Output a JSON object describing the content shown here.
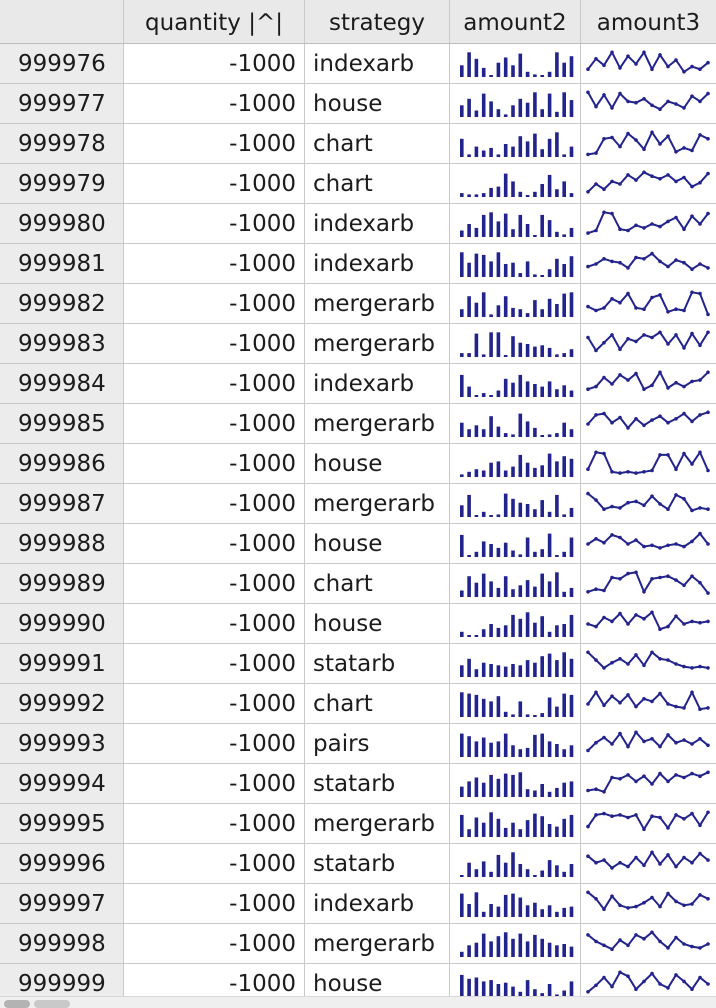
{
  "colors": {
    "spark": "#23238c",
    "header_bg": "#e9e9e9",
    "index_bg": "#ececec",
    "gridline": "#c9c9c9"
  },
  "columns": {
    "index": "",
    "quantity": "quantity |^|",
    "strategy": "strategy",
    "amount2": "amount2",
    "amount3": "amount3"
  },
  "rows": [
    {
      "id": "999976",
      "quantity": "-1000",
      "strategy": "indexarb",
      "a2": [
        0.45,
        0.95,
        0.7,
        0.35,
        0,
        0.55,
        0.75,
        0.45,
        0.9,
        0.2,
        0.1,
        0,
        0.2,
        0.95,
        0.55,
        0.8
      ],
      "a3": [
        0.3,
        0.7,
        0.45,
        0.95,
        0.35,
        0.8,
        0.5,
        0.95,
        0.3,
        0.85,
        0.4,
        0.65,
        0.2,
        0.4,
        0.3,
        0.55
      ]
    },
    {
      "id": "999977",
      "quantity": "-1000",
      "strategy": "house",
      "a2": [
        0.45,
        0.7,
        0.25,
        0.9,
        0.6,
        0.3,
        0.1,
        0.45,
        0.7,
        0.55,
        0.95,
        0.3,
        0.9,
        0.2,
        0.95,
        0.65
      ],
      "a3": [
        0.95,
        0.4,
        0.85,
        0.35,
        0.9,
        0.6,
        0.55,
        0.7,
        0.45,
        0.3,
        0.6,
        0.5,
        0.35,
        0.8,
        0.6,
        0.9
      ]
    },
    {
      "id": "999978",
      "quantity": "-1000",
      "strategy": "chart",
      "a2": [
        0.7,
        0.1,
        0.4,
        0.25,
        0.35,
        0.1,
        0.5,
        0.4,
        0.8,
        0.6,
        0.9,
        0.3,
        0.7,
        0.95,
        0.1,
        0.4
      ],
      "a3": [
        0.1,
        0.15,
        0.7,
        0.75,
        0.4,
        0.9,
        0.65,
        0.3,
        0.95,
        0.5,
        0.8,
        0.2,
        0.35,
        0.25,
        0.85,
        0.7
      ]
    },
    {
      "id": "999979",
      "quantity": "-1000",
      "strategy": "chart",
      "a2": [
        0.15,
        0.1,
        0.1,
        0.15,
        0.35,
        0.4,
        0.9,
        0.6,
        0.2,
        0,
        0.2,
        0.5,
        0.85,
        0.3,
        0.6,
        0.15
      ],
      "a3": [
        0.2,
        0.5,
        0.3,
        0.6,
        0.5,
        0.85,
        0.65,
        0.95,
        0.8,
        0.7,
        0.85,
        0.6,
        0.75,
        0.4,
        0.55,
        0.9
      ]
    },
    {
      "id": "999980",
      "quantity": "-1000",
      "strategy": "indexarb",
      "a2": [
        0.25,
        0.5,
        0.35,
        0.85,
        0.95,
        0.6,
        0.9,
        0.3,
        0.85,
        0.5,
        0,
        0.85,
        0.65,
        0.2,
        0.1,
        0.35
      ],
      "a3": [
        0.15,
        0.25,
        0.95,
        0.9,
        0.3,
        0.25,
        0.45,
        0.35,
        0.5,
        0.4,
        0.6,
        0.75,
        0.3,
        0.8,
        0.5,
        0.9
      ]
    },
    {
      "id": "999981",
      "quantity": "-1000",
      "strategy": "indexarb",
      "a2": [
        0.95,
        0.55,
        0.9,
        0.85,
        0.6,
        0.95,
        0.5,
        0.55,
        0.15,
        0.6,
        0.1,
        0,
        0.3,
        0.7,
        0.5,
        0.8
      ],
      "a3": [
        0.4,
        0.5,
        0.7,
        0.6,
        0.55,
        0.35,
        0.75,
        0.7,
        0.9,
        0.6,
        0.4,
        0.65,
        0.55,
        0.3,
        0.5,
        0.35
      ]
    },
    {
      "id": "999982",
      "quantity": "-1000",
      "strategy": "mergerarb",
      "a2": [
        0.3,
        0.8,
        0.55,
        0.95,
        0.1,
        0.45,
        0.8,
        0.35,
        0.3,
        0.15,
        0.65,
        0.3,
        0.7,
        0.5,
        0.9,
        0.95
      ],
      "a3": [
        0.4,
        0.25,
        0.35,
        0.7,
        0.55,
        0.9,
        0.35,
        0.3,
        0.75,
        0.85,
        0.2,
        0.3,
        0.25,
        0.95,
        0.9,
        0.1
      ]
    },
    {
      "id": "999983",
      "quantity": "-1000",
      "strategy": "mergerarb",
      "a2": [
        0.15,
        0.15,
        0.9,
        0.1,
        0.95,
        0.95,
        0,
        0.8,
        0.55,
        0.5,
        0.4,
        0.45,
        0.35,
        0.1,
        0.15,
        0.3
      ],
      "a3": [
        0.75,
        0.25,
        0.55,
        0.85,
        0.3,
        0.7,
        0.6,
        0.85,
        0.75,
        0.95,
        0.5,
        0.85,
        0.35,
        0.9,
        0.45,
        0.95
      ]
    },
    {
      "id": "999984",
      "quantity": "-1000",
      "strategy": "indexarb",
      "a2": [
        0.85,
        0.4,
        0,
        0.15,
        0,
        0.25,
        0.7,
        0.55,
        0.85,
        0.6,
        0.5,
        0.4,
        0.6,
        0.3,
        0.45,
        0.25
      ],
      "a3": [
        0.3,
        0.4,
        0.75,
        0.5,
        0.85,
        0.65,
        0.9,
        0.3,
        0.45,
        0.95,
        0.35,
        0.55,
        0.4,
        0.6,
        0.65,
        0.95
      ]
    },
    {
      "id": "999985",
      "quantity": "-1000",
      "strategy": "mergerarb",
      "a2": [
        0.55,
        0.3,
        0.45,
        0.3,
        0.8,
        0.4,
        0.15,
        0.1,
        0.9,
        0.6,
        0.35,
        0,
        0.1,
        0.15,
        0.55,
        0.3
      ],
      "a3": [
        0.5,
        0.85,
        0.9,
        0.55,
        0.75,
        0.35,
        0.7,
        0.45,
        0.65,
        0.8,
        0.55,
        0.7,
        0.9,
        0.6,
        0.85,
        0.95
      ]
    },
    {
      "id": "999986",
      "quantity": "-1000",
      "strategy": "house",
      "a2": [
        0.1,
        0.2,
        0.3,
        0.25,
        0.55,
        0.6,
        0.25,
        0.4,
        0.85,
        0.55,
        0.35,
        0.45,
        0.9,
        0.6,
        0.8,
        0.7
      ],
      "a3": [
        0.3,
        0.95,
        0.9,
        0.2,
        0.15,
        0.2,
        0.15,
        0.2,
        0.25,
        0.85,
        0.85,
        0.3,
        0.9,
        0.5,
        0.95,
        0.25
      ]
    },
    {
      "id": "999987",
      "quantity": "-1000",
      "strategy": "mergerarb",
      "a2": [
        0.45,
        0.85,
        0,
        0.2,
        0,
        0.1,
        0.9,
        0.7,
        0.55,
        0.5,
        0.3,
        0.65,
        0.2,
        0.85,
        0.1,
        0.35
      ],
      "a3": [
        0.9,
        0.65,
        0.3,
        0.4,
        0.35,
        0.55,
        0.6,
        0.45,
        0.8,
        0.5,
        0.3,
        0.85,
        0.7,
        0.25,
        0.35,
        0.3
      ]
    },
    {
      "id": "999988",
      "quantity": "-1000",
      "strategy": "house",
      "a2": [
        0.85,
        0,
        0.2,
        0.6,
        0.5,
        0.35,
        0.55,
        0.25,
        0.1,
        0.75,
        0.2,
        0.3,
        0.9,
        0,
        0.2,
        0.75
      ],
      "a3": [
        0.5,
        0.7,
        0.55,
        0.85,
        0.75,
        0.5,
        0.65,
        0.4,
        0.45,
        0.35,
        0.45,
        0.5,
        0.4,
        0.6,
        0.9,
        0.5
      ]
    },
    {
      "id": "999989",
      "quantity": "-1000",
      "strategy": "chart",
      "a2": [
        0.25,
        0.8,
        0.55,
        0.9,
        0.6,
        0.35,
        0.8,
        0.3,
        0.45,
        0.65,
        0.4,
        0.9,
        0.6,
        0.95,
        0.2,
        0.35
      ],
      "a3": [
        0.2,
        0.3,
        0.25,
        0.75,
        0.7,
        0.9,
        0.95,
        0.2,
        0.7,
        0.75,
        0.8,
        0.65,
        0.45,
        0.8,
        0.55,
        0.15
      ]
    },
    {
      "id": "999990",
      "quantity": "-1000",
      "strategy": "house",
      "a2": [
        0.2,
        0,
        0,
        0.3,
        0.5,
        0.35,
        0.45,
        0.85,
        0.7,
        0.95,
        0.55,
        0.8,
        0.2,
        0.45,
        0.5,
        0.85
      ],
      "a3": [
        0.5,
        0.4,
        0.75,
        0.6,
        0.9,
        0.5,
        0.85,
        0.7,
        0.95,
        0.3,
        0.4,
        0.8,
        0.5,
        0.6,
        0.55,
        0.6
      ]
    },
    {
      "id": "999991",
      "quantity": "-1000",
      "strategy": "statarb",
      "a2": [
        0.45,
        0.7,
        0.3,
        0.55,
        0.5,
        0.45,
        0.4,
        0.5,
        0.45,
        0.65,
        0.55,
        0.8,
        0.9,
        0.65,
        0.95,
        0.7
      ],
      "a3": [
        0.95,
        0.65,
        0.35,
        0.55,
        0.7,
        0.5,
        0.85,
        0.45,
        0.95,
        0.7,
        0.65,
        0.5,
        0.4,
        0.35,
        0.4,
        0.35
      ]
    },
    {
      "id": "999992",
      "quantity": "-1000",
      "strategy": "chart",
      "a2": [
        0.95,
        0.9,
        0.85,
        0.7,
        0.6,
        0.8,
        0.2,
        0.1,
        0.6,
        0.1,
        0,
        0.15,
        0.75,
        0.4,
        0.9,
        0.85
      ],
      "a3": [
        0.5,
        0.95,
        0.45,
        0.8,
        0.55,
        0.85,
        0.4,
        0.7,
        0.6,
        0.9,
        0.5,
        0.4,
        0.35,
        0.95,
        0.3,
        0.35
      ]
    },
    {
      "id": "999993",
      "quantity": "-1000",
      "strategy": "pairs",
      "a2": [
        0.9,
        0.8,
        0.6,
        0.75,
        0.55,
        0.6,
        0.9,
        0.45,
        0.3,
        0.35,
        0.85,
        0.9,
        0.6,
        0.5,
        0.3,
        0.45
      ],
      "a3": [
        0.25,
        0.55,
        0.75,
        0.5,
        0.9,
        0.4,
        0.95,
        0.6,
        0.7,
        0.4,
        0.85,
        0.55,
        0.65,
        0.5,
        0.7,
        0.45
      ]
    },
    {
      "id": "999994",
      "quantity": "-1000",
      "strategy": "statarb",
      "a2": [
        0.4,
        0.6,
        0.75,
        0.55,
        0.85,
        0.7,
        0.9,
        0.85,
        0.95,
        0.3,
        0.25,
        0.5,
        0.2,
        0.35,
        0.55,
        0.6
      ],
      "a3": [
        0.25,
        0.3,
        0.2,
        0.75,
        0.7,
        0.85,
        0.6,
        0.8,
        0.5,
        0.9,
        0.6,
        0.85,
        0.75,
        0.9,
        0.8,
        0.95
      ]
    },
    {
      "id": "999995",
      "quantity": "-1000",
      "strategy": "mergerarb",
      "a2": [
        0.85,
        0.3,
        0.75,
        0.55,
        0.95,
        0.7,
        0.35,
        0.55,
        0.3,
        0.65,
        0.9,
        0.8,
        0.5,
        0.4,
        0.7,
        0.85
      ],
      "a3": [
        0.4,
        0.85,
        0.9,
        0.8,
        0.85,
        0.75,
        0.85,
        0.3,
        0.8,
        0.75,
        0.35,
        0.85,
        0.7,
        0.9,
        0.45,
        0.95
      ]
    },
    {
      "id": "999996",
      "quantity": "-1000",
      "strategy": "statarb",
      "a2": [
        0,
        0.55,
        0.3,
        0.6,
        0.2,
        0.85,
        0.55,
        0.95,
        0.5,
        0.3,
        0,
        0.25,
        0.65,
        0.45,
        0.2,
        0.5
      ],
      "a3": [
        0.8,
        0.55,
        0.65,
        0.35,
        0.55,
        0.4,
        0.75,
        0.45,
        0.95,
        0.5,
        0.85,
        0.4,
        0.75,
        0.55,
        0.9,
        0.65
      ]
    },
    {
      "id": "999997",
      "quantity": "-1000",
      "strategy": "indexarb",
      "a2": [
        0.9,
        0.5,
        0.95,
        0.2,
        0.5,
        0.4,
        0.85,
        0.9,
        0.75,
        0.45,
        0.55,
        0.3,
        0.45,
        0.2,
        0.35,
        0.4
      ],
      "a3": [
        0.95,
        0.7,
        0.3,
        0.8,
        0.45,
        0.35,
        0.4,
        0.55,
        0.75,
        0.4,
        0.9,
        0.6,
        0.45,
        0.5,
        0.85,
        0.7
      ]
    },
    {
      "id": "999998",
      "quantity": "-1000",
      "strategy": "mergerarb",
      "a2": [
        0.2,
        0.45,
        0.55,
        0.9,
        0.6,
        0.8,
        0.95,
        0.7,
        0.9,
        0.6,
        0.85,
        0.7,
        0.55,
        0.45,
        0.5,
        0.4
      ],
      "a3": [
        0.85,
        0.6,
        0.45,
        0.3,
        0.65,
        0.45,
        0.85,
        0.7,
        0.95,
        0.6,
        0.35,
        0.75,
        0.5,
        0.4,
        0.35,
        0.5
      ]
    },
    {
      "id": "999999",
      "quantity": "-1000",
      "strategy": "house",
      "a2": [
        0.85,
        0.7,
        0.75,
        0.6,
        0.65,
        0.5,
        0.55,
        0.4,
        0.2,
        0.65,
        0.3,
        0.15,
        0.5,
        0.1,
        0.25,
        0.6
      ],
      "a3": [
        0.2,
        0.45,
        0.75,
        0.4,
        0.95,
        0.8,
        0.3,
        0.6,
        0.9,
        0.5,
        0.35,
        0.85,
        0.6,
        0.3,
        0.75,
        0.5
      ]
    }
  ]
}
